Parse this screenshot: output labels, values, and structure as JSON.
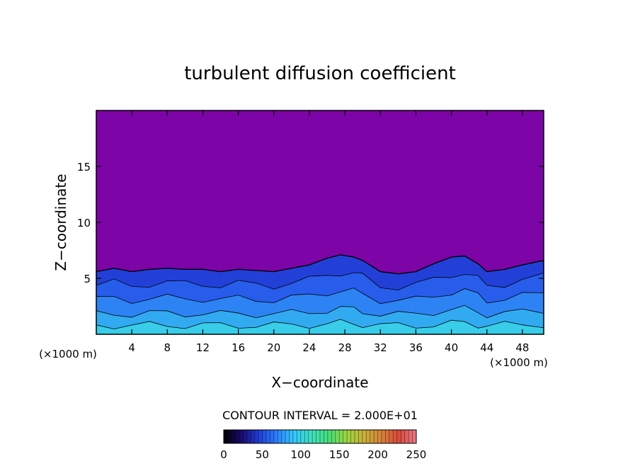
{
  "chart_data": {
    "type": "heatmap",
    "title": "turbulent diffusion coefficient",
    "xlabel": "X−coordinate",
    "ylabel": "Z−coordinate",
    "x_unit_left": "(×1000 m)",
    "x_unit_right": "(×1000 m)",
    "xlim": [
      0,
      50.4
    ],
    "ylim": [
      0,
      20
    ],
    "x_ticks": [
      4,
      8,
      12,
      16,
      20,
      24,
      28,
      32,
      36,
      40,
      44,
      48
    ],
    "y_ticks": [
      5,
      10,
      15
    ],
    "contour_interval_label": "CONTOUR INTERVAL = 2.000E+01",
    "contour_interval": 20,
    "colorbar": {
      "min": 0,
      "max": 250,
      "ticks": [
        0,
        50,
        100,
        150,
        200,
        250
      ],
      "colors": [
        "#000000",
        "#1a0a6e",
        "#1f3fd6",
        "#2c7dff",
        "#34c8ff",
        "#3ee0c0",
        "#46e07a",
        "#9ad640",
        "#c9b23a",
        "#d8823a",
        "#d94a3a",
        "#e87a8a"
      ]
    },
    "background_color": "#7d04a6",
    "turbulent_layer_color": "#2240d8",
    "turbulent_layer_top": [
      [
        0,
        5.6
      ],
      [
        2,
        5.9
      ],
      [
        4,
        5.6
      ],
      [
        6,
        5.8
      ],
      [
        8,
        5.9
      ],
      [
        10,
        5.8
      ],
      [
        12,
        5.8
      ],
      [
        14,
        5.6
      ],
      [
        16,
        5.8
      ],
      [
        18,
        5.7
      ],
      [
        20,
        5.6
      ],
      [
        22,
        5.9
      ],
      [
        24,
        6.2
      ],
      [
        26,
        6.8
      ],
      [
        27.5,
        7.1
      ],
      [
        29,
        6.9
      ],
      [
        30,
        6.6
      ],
      [
        32,
        5.6
      ],
      [
        34,
        5.4
      ],
      [
        36,
        5.6
      ],
      [
        38,
        6.3
      ],
      [
        40,
        6.9
      ],
      [
        41.5,
        7.0
      ],
      [
        43,
        6.3
      ],
      [
        44,
        5.6
      ],
      [
        46,
        5.8
      ],
      [
        48,
        6.2
      ],
      [
        50.4,
        6.6
      ]
    ]
  }
}
